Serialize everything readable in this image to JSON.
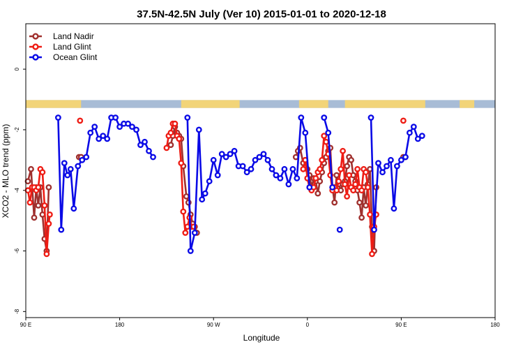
{
  "chart_data": {
    "type": "line",
    "title": "37.5N-42.5N July (Ver 10)   2015-01-01 to 2020-12-18",
    "xlabel": "Longitude",
    "ylabel": "XCO2 - MLO trend (ppm)",
    "x_tick_labels": [
      "90 E",
      "180",
      "90 W",
      "0",
      "90 E",
      "180"
    ],
    "x_ticks": [
      90,
      180,
      270,
      360,
      450,
      540
    ],
    "xlim": [
      90,
      540
    ],
    "y_ticks": [
      0,
      -2,
      -4,
      -6,
      -8
    ],
    "ylim": [
      -8.2,
      1.5
    ],
    "legend_position": "top-left",
    "land_strip": {
      "y_range": [
        -1.28,
        -1.02
      ],
      "ocean_color": "#a8bcd6",
      "land_color": "#f2d478",
      "land_segments": [
        [
          90,
          143
        ],
        [
          239,
          295
        ],
        [
          352,
          380
        ],
        [
          396,
          473
        ],
        [
          506,
          520
        ]
      ]
    },
    "series": [
      {
        "name": "Land Nadir",
        "color": "#a0302e",
        "segments": [
          [
            [
              92,
              -3.7
            ],
            [
              95,
              -3.3
            ],
            [
              98,
              -4.9
            ],
            [
              100,
              -3.9
            ],
            [
              102,
              -4.5
            ],
            [
              104,
              -3.9
            ],
            [
              106,
              -4.8
            ],
            [
              108,
              -5.6
            ],
            [
              110,
              -6.0
            ],
            [
              112,
              -3.9
            ]
          ],
          [
            [
              141,
              -2.9
            ],
            [
              143,
              -2.9
            ]
          ],
          [
            [
              229,
              -2.5
            ],
            [
              231,
              -2.2
            ],
            [
              233,
              -1.9
            ],
            [
              235,
              -2.1
            ],
            [
              237,
              -2.2
            ],
            [
              239,
              -2.3
            ],
            [
              241,
              -3.2
            ],
            [
              244,
              -4.2
            ],
            [
              246,
              -4.4
            ],
            [
              248,
              -4.8
            ],
            [
              250,
              -5.1
            ],
            [
              252,
              -5.2
            ],
            [
              254,
              -5.4
            ]
          ],
          [
            [
              349,
              -2.9
            ],
            [
              351,
              -2.7
            ],
            [
              353,
              -2.6
            ],
            [
              356,
              -3.1
            ],
            [
              358,
              -3.0
            ],
            [
              360,
              -3.3
            ],
            [
              362,
              -3.5
            ],
            [
              364,
              -3.9
            ],
            [
              366,
              -3.6
            ],
            [
              368,
              -3.7
            ],
            [
              370,
              -4.1
            ],
            [
              372,
              -3.7
            ],
            [
              374,
              -3.4
            ],
            [
              376,
              -3.1
            ],
            [
              378,
              -2.9
            ],
            [
              380,
              -2.7
            ],
            [
              382,
              -2.6
            ],
            [
              384,
              -3.9
            ],
            [
              386,
              -4.4
            ],
            [
              388,
              -3.5
            ],
            [
              390,
              -3.8
            ],
            [
              392,
              -4.0
            ],
            [
              394,
              -3.8
            ],
            [
              396,
              -3.7
            ],
            [
              398,
              -3.2
            ],
            [
              400,
              -2.9
            ],
            [
              402,
              -3.0
            ],
            [
              404,
              -3.5
            ],
            [
              406,
              -3.7
            ],
            [
              408,
              -4.0
            ],
            [
              410,
              -4.4
            ],
            [
              412,
              -4.9
            ],
            [
              414,
              -3.9
            ],
            [
              416,
              -4.5
            ],
            [
              418,
              -3.8
            ],
            [
              420,
              -3.3
            ],
            [
              422,
              -5.2
            ],
            [
              424,
              -6.0
            ],
            [
              426,
              -3.9
            ]
          ],
          [
            [
              452,
              -2.9
            ],
            [
              454,
              -2.9
            ]
          ]
        ]
      },
      {
        "name": "Land Glint",
        "color": "#ee1c14",
        "segments": [
          [
            [
              92,
              -4.0
            ],
            [
              94,
              -4.4
            ],
            [
              96,
              -3.9
            ],
            [
              98,
              -3.9
            ],
            [
              100,
              -4.0
            ],
            [
              102,
              -3.9
            ],
            [
              104,
              -3.3
            ],
            [
              106,
              -3.4
            ],
            [
              108,
              -4.5
            ],
            [
              110,
              -6.1
            ],
            [
              112,
              -5.1
            ],
            [
              113,
              -4.8
            ]
          ],
          [
            [
              142,
              -1.7
            ]
          ],
          [
            [
              225,
              -2.6
            ],
            [
              227,
              -2.2
            ],
            [
              229,
              -2.1
            ],
            [
              231,
              -1.8
            ],
            [
              233,
              -1.8
            ],
            [
              235,
              -2.2
            ],
            [
              237,
              -2.3
            ],
            [
              239,
              -3.1
            ],
            [
              241,
              -4.7
            ],
            [
              243,
              -5.4
            ],
            [
              245,
              -5.2
            ],
            [
              247,
              -4.9
            ],
            [
              249,
              -5.2
            ],
            [
              251,
              -5.2
            ]
          ],
          [
            [
              356,
              -3.3
            ],
            [
              358,
              -3.0
            ],
            [
              360,
              -3.6
            ],
            [
              362,
              -3.9
            ],
            [
              364,
              -4.0
            ],
            [
              366,
              -3.9
            ],
            [
              368,
              -3.6
            ],
            [
              370,
              -3.4
            ],
            [
              372,
              -3.3
            ],
            [
              374,
              -3.0
            ],
            [
              376,
              -2.2
            ],
            [
              378,
              -2.4
            ],
            [
              380,
              -2.8
            ],
            [
              382,
              -3.5
            ],
            [
              384,
              -4.0
            ],
            [
              386,
              -3.9
            ],
            [
              388,
              -4.0
            ],
            [
              390,
              -3.7
            ],
            [
              392,
              -3.3
            ],
            [
              394,
              -2.7
            ],
            [
              396,
              -3.8
            ],
            [
              398,
              -4.2
            ],
            [
              400,
              -3.5
            ],
            [
              402,
              -3.9
            ],
            [
              404,
              -4.0
            ],
            [
              406,
              -3.8
            ],
            [
              408,
              -3.3
            ],
            [
              410,
              -3.9
            ],
            [
              412,
              -4.0
            ],
            [
              414,
              -3.3
            ],
            [
              416,
              -3.4
            ],
            [
              418,
              -3.9
            ],
            [
              420,
              -4.8
            ],
            [
              422,
              -6.1
            ],
            [
              424,
              -5.2
            ],
            [
              426,
              -4.8
            ]
          ],
          [
            [
              452,
              -1.7
            ]
          ]
        ]
      },
      {
        "name": "Ocean Glint",
        "color": "#0a0ae6",
        "segments": [
          [
            [
              121,
              -1.6
            ],
            [
              124,
              -5.3
            ],
            [
              127,
              -3.1
            ],
            [
              130,
              -3.5
            ],
            [
              133,
              -3.3
            ],
            [
              136,
              -4.6
            ],
            [
              140,
              -3.2
            ],
            [
              144,
              -3.0
            ],
            [
              148,
              -2.9
            ],
            [
              152,
              -2.1
            ],
            [
              156,
              -1.9
            ],
            [
              160,
              -2.3
            ],
            [
              164,
              -2.2
            ],
            [
              168,
              -2.3
            ],
            [
              172,
              -1.6
            ],
            [
              176,
              -1.6
            ],
            [
              180,
              -1.9
            ],
            [
              184,
              -1.8
            ],
            [
              188,
              -1.8
            ],
            [
              192,
              -1.9
            ],
            [
              196,
              -2.0
            ],
            [
              200,
              -2.5
            ],
            [
              204,
              -2.4
            ],
            [
              208,
              -2.7
            ],
            [
              212,
              -2.9
            ]
          ],
          [
            [
              245,
              -1.6
            ],
            [
              248,
              -6.0
            ],
            [
              252,
              -5.4
            ],
            [
              256,
              -2.0
            ],
            [
              259,
              -4.3
            ],
            [
              262,
              -4.1
            ],
            [
              266,
              -3.7
            ],
            [
              270,
              -3.0
            ],
            [
              274,
              -3.5
            ],
            [
              278,
              -2.8
            ],
            [
              282,
              -2.9
            ],
            [
              286,
              -2.8
            ],
            [
              290,
              -2.7
            ],
            [
              294,
              -3.2
            ],
            [
              298,
              -3.2
            ],
            [
              302,
              -3.4
            ],
            [
              306,
              -3.3
            ],
            [
              310,
              -3.0
            ],
            [
              314,
              -2.9
            ],
            [
              318,
              -2.8
            ],
            [
              322,
              -3.0
            ],
            [
              326,
              -3.3
            ],
            [
              330,
              -3.5
            ],
            [
              334,
              -3.6
            ],
            [
              338,
              -3.3
            ],
            [
              342,
              -3.8
            ],
            [
              346,
              -3.3
            ],
            [
              350,
              -3.6
            ],
            [
              354,
              -1.6
            ],
            [
              358,
              -2.1
            ],
            [
              362,
              -3.9
            ]
          ],
          [
            [
              376,
              -1.6
            ],
            [
              380,
              -2.1
            ],
            [
              384,
              -3.9
            ]
          ],
          [
            [
              391,
              -5.3
            ]
          ],
          [
            [
              421,
              -1.6
            ],
            [
              424,
              -5.3
            ],
            [
              428,
              -3.1
            ],
            [
              432,
              -3.4
            ],
            [
              436,
              -3.2
            ],
            [
              440,
              -3.0
            ],
            [
              443,
              -4.6
            ],
            [
              446,
              -3.2
            ],
            [
              450,
              -3.0
            ],
            [
              454,
              -2.9
            ],
            [
              458,
              -2.1
            ],
            [
              462,
              -1.9
            ],
            [
              466,
              -2.3
            ],
            [
              470,
              -2.2
            ]
          ]
        ]
      }
    ]
  }
}
